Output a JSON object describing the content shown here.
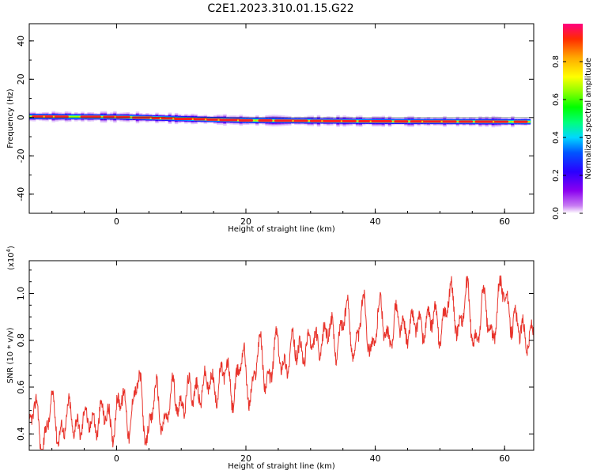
{
  "title": "C2E1.2023.310.01.15.G22",
  "colors": {
    "snr_line": "#e8322a",
    "axis": "#000000"
  },
  "chart_data": [
    {
      "type": "heatmap",
      "xlabel": "Height of straight line (km)",
      "ylabel": "Frequency (Hz)",
      "xlim": [
        -13.5,
        64.5
      ],
      "ylim": [
        -50,
        49
      ],
      "xticks": [
        0,
        20,
        40,
        60
      ],
      "yticks": [
        -40,
        -20,
        0,
        20,
        40
      ],
      "colorbar": {
        "label": "Normalized spectral amplitude",
        "range": [
          0.0,
          1.0
        ],
        "ticks": [
          "0.0",
          "0.2",
          "0.4",
          "0.6",
          "0.8"
        ],
        "colormap": "rainbow (magenta-blue-cyan-green-yellow-red)"
      },
      "ridge": {
        "description": "narrow energy band near 0 Hz, drifting slightly negative with height",
        "x": [
          -13,
          0,
          20,
          40,
          63
        ],
        "frequency_hz": [
          0.5,
          0.3,
          -1.5,
          -2.0,
          -2.2
        ]
      }
    },
    {
      "type": "line",
      "xlabel": "Height of straight line (km)",
      "ylabel": "SNR (10 * v/v)",
      "y_multiplier": "(x10",
      "y_multiplier_exp": "4",
      "y_multiplier_close": ")",
      "xlim": [
        -13.5,
        64.5
      ],
      "ylim": [
        0.33,
        1.14
      ],
      "xticks": [
        0,
        20,
        40,
        60
      ],
      "yticks": [
        "0.4",
        "0.6",
        "0.8",
        "1.0"
      ],
      "series": [
        {
          "x": [
            -13.5,
            -10,
            -5,
            0,
            3,
            5,
            10,
            15,
            20,
            25,
            30,
            35,
            40,
            45,
            50,
            52,
            55,
            58,
            60,
            62,
            64.5
          ],
          "y": [
            0.42,
            0.45,
            0.45,
            0.48,
            0.55,
            0.47,
            0.55,
            0.62,
            0.65,
            0.72,
            0.78,
            0.85,
            0.85,
            0.86,
            0.88,
            0.95,
            0.88,
            0.88,
            1.0,
            0.84,
            0.82
          ]
        }
      ]
    }
  ]
}
